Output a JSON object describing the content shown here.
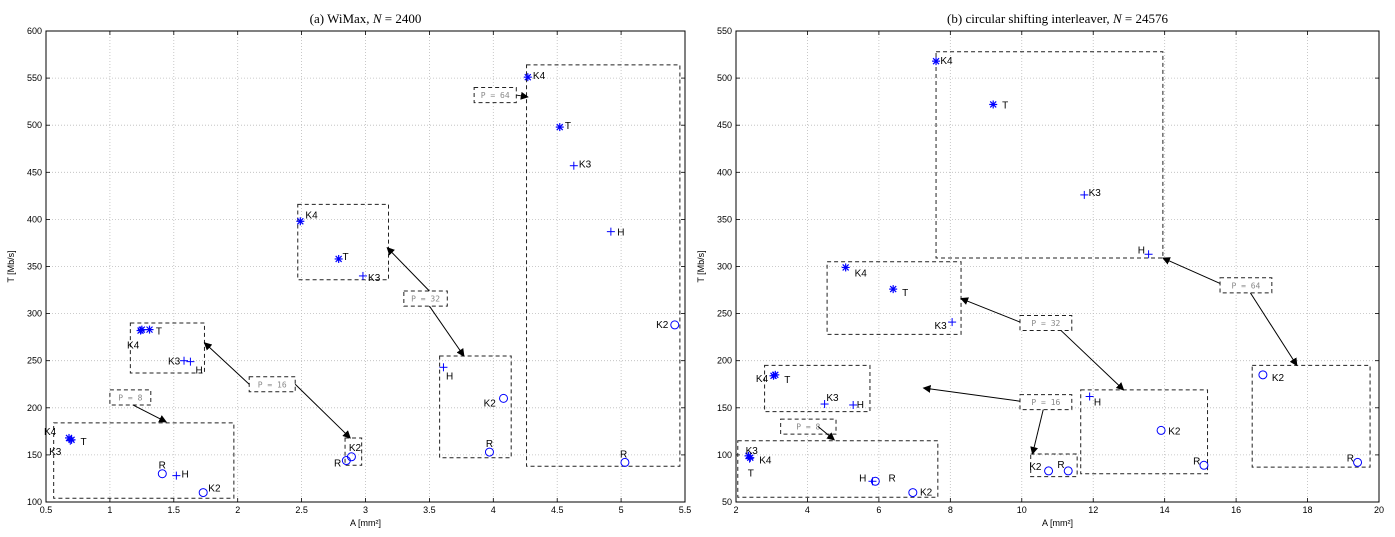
{
  "colors": {
    "marker": "#0000ff",
    "grid": "#bbbbbb",
    "box": "#222222",
    "plabel": "#888888"
  },
  "chart_data": [
    {
      "type": "scatter",
      "title": "(a) WiMax, N = 2400",
      "title_parts": {
        "prefix": "(a) WiMax, ",
        "var": "N",
        "suffix": " = 2400"
      },
      "xlabel": "A [mm²]",
      "ylabel": "T [Mb/s]",
      "xlim": [
        0.5,
        5.5
      ],
      "ylim": [
        100,
        600
      ],
      "xticks": [
        "0.5",
        "1",
        "1.5",
        "2",
        "2.5",
        "3",
        "3.5",
        "4",
        "4.5",
        "5",
        "5.5"
      ],
      "yticks": [
        "100",
        "150",
        "200",
        "250",
        "300",
        "350",
        "400",
        "450",
        "500",
        "550",
        "600"
      ],
      "grid": true,
      "points": [
        {
          "x": 0.68,
          "y": 168,
          "marker": "*",
          "label": "K4",
          "lx": -0.1,
          "ly": 6,
          "anchor": "end"
        },
        {
          "x": 0.7,
          "y": 166,
          "marker": "*",
          "label": "T",
          "lx": 0.07,
          "ly": -2,
          "anchor": "start"
        },
        {
          "x": 0.69,
          "y": 165,
          "marker": "+",
          "label": "K3",
          "lx": -0.07,
          "ly": -11,
          "anchor": "end"
        },
        {
          "x": 1.41,
          "y": 130,
          "marker": "o",
          "label": "R",
          "lx": 0.0,
          "ly": 8,
          "anchor": "middle"
        },
        {
          "x": 1.52,
          "y": 128,
          "marker": "+",
          "label": "H",
          "lx": 0.04,
          "ly": 1,
          "anchor": "start"
        },
        {
          "x": 1.73,
          "y": 110,
          "marker": "o",
          "label": "K2",
          "lx": 0.04,
          "ly": 4,
          "anchor": "start"
        },
        {
          "x": 1.25,
          "y": 283,
          "marker": "*",
          "label": "",
          "lx": 0,
          "ly": 0,
          "anchor": "start"
        },
        {
          "x": 1.31,
          "y": 283,
          "marker": "*",
          "label": "T",
          "lx": 0.05,
          "ly": -2,
          "anchor": "start"
        },
        {
          "x": 1.24,
          "y": 282,
          "marker": "*",
          "label": "K4",
          "lx": -0.01,
          "ly": -15,
          "anchor": "end"
        },
        {
          "x": 1.58,
          "y": 250,
          "marker": "+",
          "label": "K3",
          "lx": -0.03,
          "ly": -1,
          "anchor": "end"
        },
        {
          "x": 1.63,
          "y": 249,
          "marker": "+",
          "label": "H",
          "lx": 0.04,
          "ly": -9,
          "anchor": "start"
        },
        {
          "x": 2.85,
          "y": 144,
          "marker": "o",
          "label": "R",
          "lx": -0.04,
          "ly": -3,
          "anchor": "end"
        },
        {
          "x": 2.89,
          "y": 148,
          "marker": "o",
          "label": "K2",
          "lx": -0.02,
          "ly": 9,
          "anchor": "start"
        },
        {
          "x": 2.49,
          "y": 398,
          "marker": "*",
          "label": "K4",
          "lx": 0.04,
          "ly": 6,
          "anchor": "start"
        },
        {
          "x": 2.79,
          "y": 358,
          "marker": "*",
          "label": "T",
          "lx": 0.03,
          "ly": 2,
          "anchor": "start"
        },
        {
          "x": 2.98,
          "y": 340,
          "marker": "+",
          "label": "K3",
          "lx": 0.04,
          "ly": -2,
          "anchor": "start"
        },
        {
          "x": 3.61,
          "y": 243,
          "marker": "+",
          "label": "H",
          "lx": 0.02,
          "ly": -9,
          "anchor": "start"
        },
        {
          "x": 3.97,
          "y": 153,
          "marker": "o",
          "label": "R",
          "lx": 0.0,
          "ly": 8,
          "anchor": "middle"
        },
        {
          "x": 4.08,
          "y": 210,
          "marker": "o",
          "label": "K2",
          "lx": -0.06,
          "ly": -5,
          "anchor": "end"
        },
        {
          "x": 4.27,
          "y": 551,
          "marker": "*",
          "label": "K4",
          "lx": 0.04,
          "ly": 1,
          "anchor": "start"
        },
        {
          "x": 4.52,
          "y": 498,
          "marker": "*",
          "label": "T",
          "lx": 0.04,
          "ly": 1,
          "anchor": "start"
        },
        {
          "x": 4.63,
          "y": 457,
          "marker": "+",
          "label": "K3",
          "lx": 0.04,
          "ly": 1,
          "anchor": "start"
        },
        {
          "x": 4.92,
          "y": 387,
          "marker": "+",
          "label": "H",
          "lx": 0.05,
          "ly": -1,
          "anchor": "start"
        },
        {
          "x": 5.42,
          "y": 288,
          "marker": "o",
          "label": "K2",
          "lx": -0.05,
          "ly": 0,
          "anchor": "end"
        },
        {
          "x": 5.03,
          "y": 142,
          "marker": "o",
          "label": "R",
          "lx": -0.01,
          "ly": 8,
          "anchor": "middle"
        }
      ],
      "boxes": [
        {
          "x0": 0.56,
          "x1": 1.97,
          "y0": 104,
          "y1": 184
        },
        {
          "x0": 1.16,
          "x1": 1.74,
          "y0": 237,
          "y1": 290
        },
        {
          "x0": 2.84,
          "x1": 2.97,
          "y0": 139,
          "y1": 168
        },
        {
          "x0": 2.47,
          "x1": 3.18,
          "y0": 336,
          "y1": 416
        },
        {
          "x0": 3.58,
          "x1": 4.14,
          "y0": 147,
          "y1": 255
        },
        {
          "x0": 4.26,
          "x1": 5.46,
          "y0": 138,
          "y1": 564
        }
      ],
      "p_labels": [
        {
          "text": "P = 8",
          "x0": 1.0,
          "x1": 1.32,
          "y0": 203,
          "y1": 219,
          "ax0": 1.18,
          "ay0": 203,
          "ax1": 1.44,
          "ay1": 185
        },
        {
          "text": "P = 16",
          "x0": 2.09,
          "x1": 2.45,
          "y0": 217,
          "y1": 233,
          "ax0": 2.45,
          "ay0": 225,
          "ax1": 2.88,
          "ay1": 168,
          "ax2": 2.09,
          "ay2": 225,
          "ax3": 1.74,
          "ay3": 269
        },
        {
          "text": "P = 32",
          "x0": 3.3,
          "x1": 3.64,
          "y0": 308,
          "y1": 324,
          "ax0": 3.5,
          "ay0": 324,
          "ax1": 3.17,
          "ay1": 370,
          "ax2": 3.5,
          "ay2": 308,
          "ax3": 3.77,
          "ay3": 255
        },
        {
          "text": "P = 64",
          "x0": 3.85,
          "x1": 4.18,
          "y0": 524,
          "y1": 540,
          "ax0": 4.18,
          "ay0": 532,
          "ax1": 4.27,
          "ay1": 530
        }
      ]
    },
    {
      "type": "scatter",
      "title": "(b) circular shifting interleaver, N = 24576",
      "title_parts": {
        "prefix": "(b) circular shifting interleaver, ",
        "var": "N",
        "suffix": " = 24576"
      },
      "xlabel": "A [mm²]",
      "ylabel": "T [Mb/s]",
      "xlim": [
        2,
        20
      ],
      "ylim": [
        50,
        550
      ],
      "xticks": [
        "2",
        "4",
        "6",
        "8",
        "10",
        "12",
        "14",
        "16",
        "18",
        "20"
      ],
      "yticks": [
        "50",
        "100",
        "150",
        "200",
        "250",
        "300",
        "350",
        "400",
        "450",
        "500",
        "550"
      ],
      "grid": true,
      "points": [
        {
          "x": 2.35,
          "y": 99,
          "marker": "*",
          "label": "K3",
          "lx": -0.08,
          "ly": 5,
          "anchor": "start"
        },
        {
          "x": 2.4,
          "y": 97,
          "marker": "*",
          "label": "K4",
          "lx": 0.25,
          "ly": -3,
          "anchor": "start"
        },
        {
          "x": 2.38,
          "y": 96,
          "marker": "+",
          "label": "T",
          "lx": -0.05,
          "ly": -15,
          "anchor": "start"
        },
        {
          "x": 5.9,
          "y": 72,
          "marker": "o",
          "label": "H",
          "lx": -0.25,
          "ly": 3,
          "anchor": "end"
        },
        {
          "x": 5.82,
          "y": 72,
          "marker": "+",
          "label": "R",
          "lx": 0.45,
          "ly": 3,
          "anchor": "start"
        },
        {
          "x": 6.95,
          "y": 60,
          "marker": "o",
          "label": "K2",
          "lx": 0.2,
          "ly": 0,
          "anchor": "start"
        },
        {
          "x": 3.1,
          "y": 185,
          "marker": "*",
          "label": "K4",
          "lx": -0.2,
          "ly": -4,
          "anchor": "end"
        },
        {
          "x": 3.05,
          "y": 184,
          "marker": "*",
          "label": "T",
          "lx": 0.3,
          "ly": -4,
          "anchor": "start"
        },
        {
          "x": 4.48,
          "y": 154,
          "marker": "+",
          "label": "K3",
          "lx": 0.05,
          "ly": 6,
          "anchor": "start"
        },
        {
          "x": 5.28,
          "y": 153,
          "marker": "+",
          "label": "H",
          "lx": 0.1,
          "ly": 0,
          "anchor": "start"
        },
        {
          "x": 10.75,
          "y": 83,
          "marker": "o",
          "label": "K2",
          "lx": -0.2,
          "ly": 4,
          "anchor": "end"
        },
        {
          "x": 11.3,
          "y": 83,
          "marker": "o",
          "label": "R",
          "lx": -0.1,
          "ly": 6,
          "anchor": "end"
        },
        {
          "x": 5.07,
          "y": 299,
          "marker": "*",
          "label": "K4",
          "lx": 0.25,
          "ly": -6,
          "anchor": "start"
        },
        {
          "x": 6.4,
          "y": 276,
          "marker": "*",
          "label": "T",
          "lx": 0.25,
          "ly": -4,
          "anchor": "start"
        },
        {
          "x": 8.05,
          "y": 241,
          "marker": "+",
          "label": "K3",
          "lx": -0.15,
          "ly": -4,
          "anchor": "end"
        },
        {
          "x": 11.9,
          "y": 162,
          "marker": "+",
          "label": "H",
          "lx": 0.12,
          "ly": -6,
          "anchor": "start"
        },
        {
          "x": 13.9,
          "y": 126,
          "marker": "o",
          "label": "K2",
          "lx": 0.2,
          "ly": -1,
          "anchor": "start"
        },
        {
          "x": 15.1,
          "y": 89,
          "marker": "o",
          "label": "R",
          "lx": -0.1,
          "ly": 4,
          "anchor": "end"
        },
        {
          "x": 7.6,
          "y": 518,
          "marker": "*",
          "label": "K4",
          "lx": 0.12,
          "ly": 0,
          "anchor": "start"
        },
        {
          "x": 9.2,
          "y": 472,
          "marker": "*",
          "label": "T",
          "lx": 0.25,
          "ly": -1,
          "anchor": "start"
        },
        {
          "x": 11.75,
          "y": 376,
          "marker": "+",
          "label": "K3",
          "lx": 0.12,
          "ly": 2,
          "anchor": "start"
        },
        {
          "x": 13.55,
          "y": 313,
          "marker": "+",
          "label": "H",
          "lx": -0.1,
          "ly": 4,
          "anchor": "end"
        },
        {
          "x": 16.75,
          "y": 185,
          "marker": "o",
          "label": "K2",
          "lx": 0.25,
          "ly": -3,
          "anchor": "start"
        },
        {
          "x": 19.4,
          "y": 92,
          "marker": "o",
          "label": "R",
          "lx": -0.1,
          "ly": 4,
          "anchor": "end"
        }
      ],
      "boxes": [
        {
          "x0": 2.05,
          "x1": 7.65,
          "y0": 55,
          "y1": 115
        },
        {
          "x0": 2.8,
          "x1": 5.75,
          "y0": 146,
          "y1": 195
        },
        {
          "x0": 10.25,
          "x1": 11.55,
          "y0": 77,
          "y1": 101
        },
        {
          "x0": 4.55,
          "x1": 8.3,
          "y0": 228,
          "y1": 305
        },
        {
          "x0": 11.65,
          "x1": 15.2,
          "y0": 80,
          "y1": 169
        },
        {
          "x0": 7.6,
          "x1": 13.95,
          "y0": 309,
          "y1": 528
        },
        {
          "x0": 16.45,
          "x1": 19.75,
          "y0": 87,
          "y1": 195
        }
      ],
      "p_labels": [
        {
          "text": "P = 8",
          "x0": 3.25,
          "x1": 4.8,
          "y0": 122,
          "y1": 138,
          "ax0": 4.3,
          "ay0": 130,
          "ax1": 4.75,
          "ay1": 116
        },
        {
          "text": "P = 16",
          "x0": 9.95,
          "x1": 11.4,
          "y0": 148,
          "y1": 164,
          "ax0": 9.95,
          "ay0": 157,
          "ax1": 7.25,
          "ay1": 171,
          "ax2": 10.6,
          "ay2": 148,
          "ax3": 10.3,
          "ay3": 101
        },
        {
          "text": "P = 32",
          "x0": 9.95,
          "x1": 11.4,
          "y0": 232,
          "y1": 248,
          "ax0": 9.95,
          "ay0": 241,
          "ax1": 8.3,
          "ay1": 266,
          "ax2": 11.1,
          "ay2": 232,
          "ax3": 12.85,
          "ay3": 169
        },
        {
          "text": "P = 64",
          "x0": 15.55,
          "x1": 17.0,
          "y0": 272,
          "y1": 288,
          "ax0": 15.55,
          "ay0": 282,
          "ax1": 13.95,
          "ay1": 309,
          "ax2": 16.4,
          "ay2": 272,
          "ax3": 17.7,
          "ay3": 195
        }
      ]
    }
  ]
}
